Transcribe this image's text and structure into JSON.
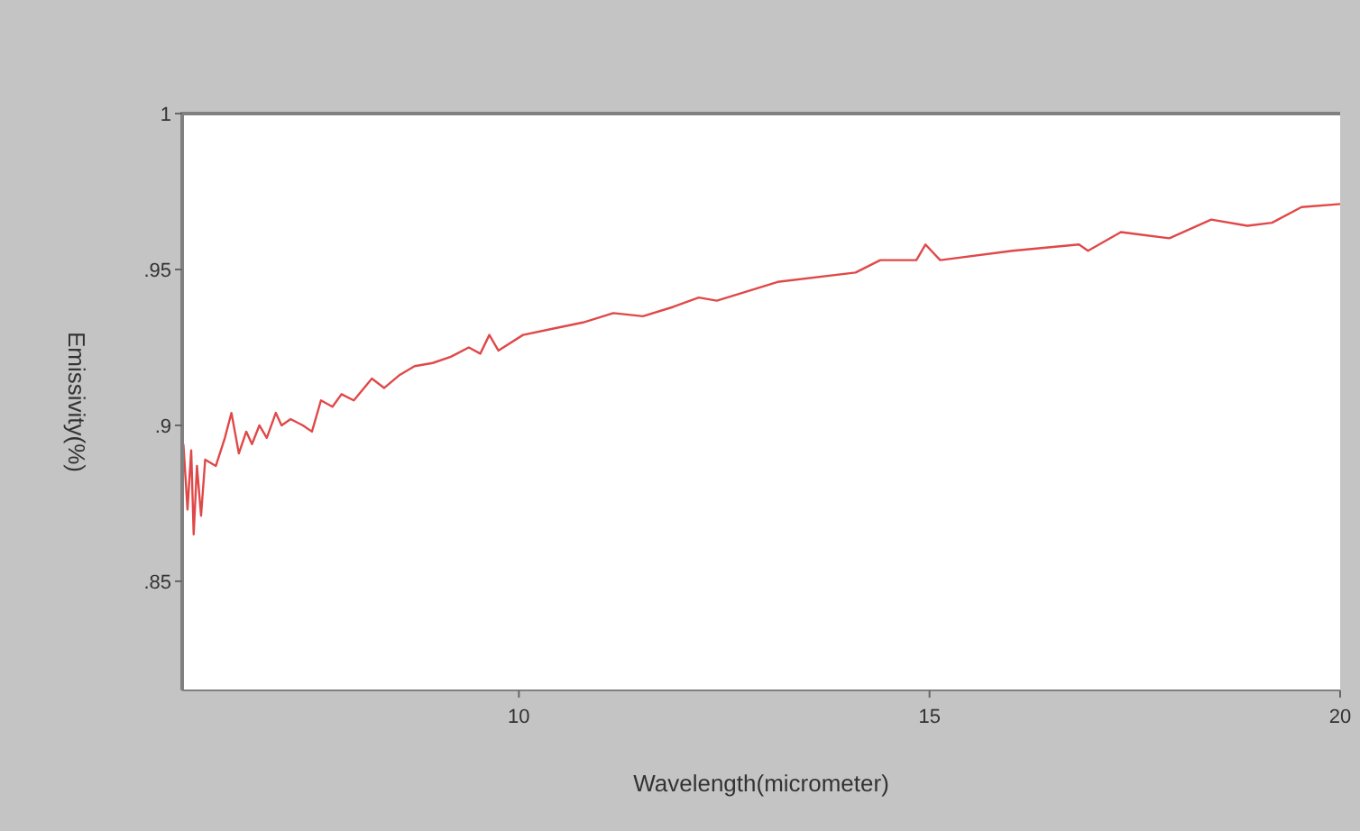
{
  "chart_data": {
    "type": "line",
    "xlabel": "Wavelength(micrometer)",
    "ylabel": "Emissivity(%)",
    "xlim": [
      5.9,
      20
    ],
    "ylim": [
      0.815,
      1.0
    ],
    "xticks": [
      10,
      15,
      20
    ],
    "yticks": [
      {
        "value": 0.85,
        "label": ".85"
      },
      {
        "value": 0.9,
        "label": ".9"
      },
      {
        "value": 0.95,
        "label": ".95"
      },
      1
    ],
    "grid": false,
    "series": [
      {
        "color": "#e04848",
        "x": [
          5.915,
          5.965,
          6.01,
          6.04,
          6.08,
          6.13,
          6.18,
          6.31,
          6.42,
          6.5,
          6.59,
          6.68,
          6.75,
          6.84,
          6.93,
          7.04,
          7.11,
          7.22,
          7.37,
          7.48,
          7.59,
          7.73,
          7.84,
          7.99,
          8.21,
          8.36,
          8.54,
          8.73,
          8.95,
          9.17,
          9.39,
          9.53,
          9.64,
          9.75,
          10.05,
          10.41,
          10.78,
          11.15,
          11.51,
          11.88,
          12.19,
          12.41,
          13.15,
          14.1,
          14.4,
          14.84,
          14.95,
          15.13,
          16.01,
          16.82,
          16.93,
          17.33,
          17.92,
          18.43,
          18.87,
          19.17,
          19.53,
          20.0
        ],
        "values": [
          0.894,
          0.873,
          0.892,
          0.865,
          0.887,
          0.871,
          0.889,
          0.887,
          0.896,
          0.904,
          0.891,
          0.898,
          0.894,
          0.9,
          0.896,
          0.904,
          0.9,
          0.902,
          0.9,
          0.898,
          0.908,
          0.906,
          0.91,
          0.908,
          0.915,
          0.912,
          0.916,
          0.919,
          0.92,
          0.922,
          0.925,
          0.923,
          0.929,
          0.924,
          0.929,
          0.931,
          0.933,
          0.936,
          0.935,
          0.938,
          0.941,
          0.94,
          0.946,
          0.949,
          0.953,
          0.953,
          0.958,
          0.953,
          0.956,
          0.958,
          0.956,
          0.962,
          0.96,
          0.966,
          0.964,
          0.965,
          0.97,
          0.971
        ]
      }
    ]
  }
}
